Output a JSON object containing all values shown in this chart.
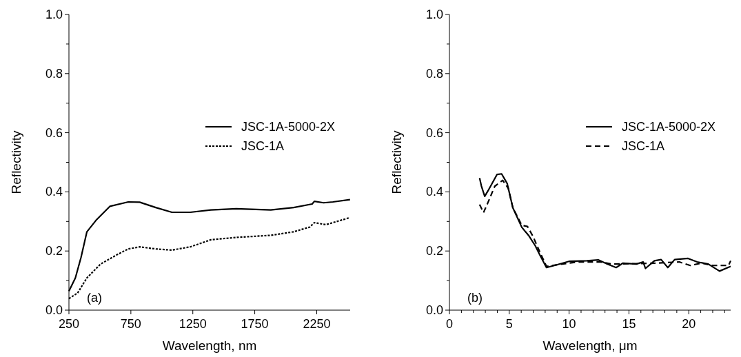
{
  "chart_data": [
    {
      "type": "line",
      "xlabel": "Wavelength, nm",
      "ylabel": "Reflectivity",
      "annotations": [
        "(a)"
      ],
      "legend": "right",
      "xlim": [
        250,
        2520
      ],
      "xticks": [
        250,
        750,
        1250,
        1750,
        2250
      ],
      "ylim": [
        0,
        1
      ],
      "yticks": [
        {
          "value": 0,
          "label": "0.0"
        },
        {
          "value": 0.1,
          "label": null
        },
        {
          "value": 0.2,
          "label": "0.2"
        },
        {
          "value": 0.3,
          "label": null
        },
        {
          "value": 0.4,
          "label": "0.4"
        },
        {
          "value": 0.5,
          "label": null
        },
        {
          "value": 0.6,
          "label": "0.6"
        },
        {
          "value": 0.7,
          "label": null
        },
        {
          "value": 0.8,
          "label": "0.8"
        },
        {
          "value": 0.9,
          "label": null
        },
        {
          "value": 1,
          "label": "1.0"
        }
      ],
      "series": [
        {
          "name": "JSC-1A-5000-2X",
          "color": "#000000",
          "line_style": "solid",
          "x": [
            250,
            302,
            348,
            395,
            469,
            580,
            729,
            821,
            951,
            1081,
            1230,
            1396,
            1600,
            1879,
            2064,
            2213,
            2231,
            2306,
            2380,
            2519
          ],
          "values": [
            0.064,
            0.109,
            0.179,
            0.265,
            0.304,
            0.351,
            0.366,
            0.365,
            0.347,
            0.331,
            0.331,
            0.339,
            0.343,
            0.339,
            0.347,
            0.359,
            0.368,
            0.363,
            0.366,
            0.374
          ]
        },
        {
          "name": "JSC-1A",
          "color": "#000000",
          "line_style": "dotted",
          "x": [
            250,
            320,
            395,
            506,
            636,
            729,
            821,
            951,
            1081,
            1230,
            1396,
            1600,
            1879,
            2064,
            2194,
            2231,
            2324,
            2519
          ],
          "values": [
            0.039,
            0.058,
            0.109,
            0.156,
            0.187,
            0.207,
            0.214,
            0.207,
            0.203,
            0.214,
            0.238,
            0.246,
            0.253,
            0.265,
            0.281,
            0.296,
            0.289,
            0.313
          ]
        }
      ]
    },
    {
      "type": "line",
      "xlabel": "Wavelength, μm",
      "ylabel": "Reflectivity",
      "annotations": [
        "(b)"
      ],
      "legend": "right",
      "xlim": [
        0,
        23.5
      ],
      "xticks": [
        0,
        {
          "value": 1,
          "label": null
        },
        {
          "value": 2,
          "label": null
        },
        {
          "value": 3,
          "label": null
        },
        {
          "value": 4,
          "label": null
        },
        5,
        {
          "value": 6,
          "label": null
        },
        {
          "value": 7,
          "label": null
        },
        {
          "value": 8,
          "label": null
        },
        {
          "value": 9,
          "label": null
        },
        10,
        {
          "value": 11,
          "label": null
        },
        {
          "value": 12,
          "label": null
        },
        {
          "value": 13,
          "label": null
        },
        {
          "value": 14,
          "label": null
        },
        15,
        {
          "value": 16,
          "label": null
        },
        {
          "value": 17,
          "label": null
        },
        {
          "value": 18,
          "label": null
        },
        {
          "value": 19,
          "label": null
        },
        20,
        {
          "value": 21,
          "label": null
        },
        {
          "value": 22,
          "label": null
        },
        {
          "value": 23,
          "label": null
        }
      ],
      "ylim": [
        0,
        1
      ],
      "yticks": [
        {
          "value": 0,
          "label": "0.0"
        },
        {
          "value": 0.1,
          "label": null
        },
        {
          "value": 0.2,
          "label": "0.2"
        },
        {
          "value": 0.3,
          "label": null
        },
        {
          "value": 0.4,
          "label": "0.4"
        },
        {
          "value": 0.5,
          "label": null
        },
        {
          "value": 0.6,
          "label": "0.6"
        },
        {
          "value": 0.7,
          "label": null
        },
        {
          "value": 0.8,
          "label": "0.8"
        },
        {
          "value": 0.9,
          "label": null
        },
        {
          "value": 1,
          "label": "1.0"
        }
      ],
      "series": [
        {
          "name": "JSC-1A-5000-2X",
          "color": "#000000",
          "line_style": "solid",
          "x": [
            2.52,
            2.67,
            2.95,
            3.23,
            3.98,
            4.36,
            4.83,
            5.3,
            6.05,
            6.61,
            7.17,
            7.55,
            8.11,
            8.86,
            9.99,
            11.49,
            12.43,
            13.18,
            13.93,
            14.5,
            15.62,
            16.19,
            16.38,
            17.13,
            17.69,
            18.25,
            18.82,
            19.94,
            20.69,
            21.63,
            22.57,
            23.5
          ],
          "values": [
            0.447,
            0.42,
            0.385,
            0.404,
            0.459,
            0.461,
            0.428,
            0.346,
            0.28,
            0.253,
            0.218,
            0.187,
            0.144,
            0.152,
            0.165,
            0.167,
            0.17,
            0.156,
            0.144,
            0.159,
            0.156,
            0.163,
            0.141,
            0.167,
            0.171,
            0.144,
            0.171,
            0.175,
            0.163,
            0.156,
            0.132,
            0.148
          ]
        },
        {
          "name": "JSC-1A",
          "color": "#000000",
          "line_style": "dashed",
          "x": [
            2.52,
            2.85,
            3.23,
            3.79,
            4.45,
            4.92,
            5.3,
            6.05,
            6.52,
            6.99,
            7.36,
            8.11,
            9.24,
            10.74,
            12.62,
            13.56,
            15.44,
            17.32,
            19.2,
            20.13,
            21.07,
            22.01,
            23.32,
            23.5
          ],
          "values": [
            0.357,
            0.33,
            0.365,
            0.419,
            0.439,
            0.412,
            0.346,
            0.287,
            0.283,
            0.249,
            0.214,
            0.148,
            0.155,
            0.163,
            0.163,
            0.156,
            0.157,
            0.159,
            0.163,
            0.151,
            0.159,
            0.151,
            0.151,
            0.167
          ]
        }
      ]
    }
  ]
}
